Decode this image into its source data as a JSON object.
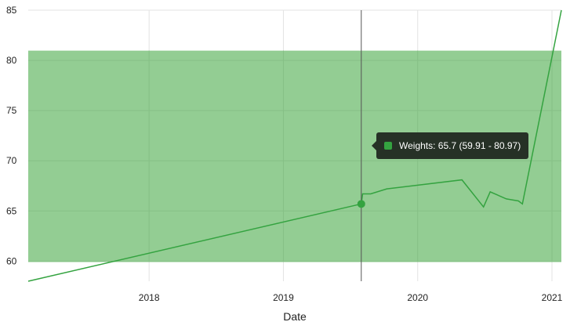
{
  "chart_data": {
    "type": "line",
    "xlabel": "Date",
    "ylabel": "",
    "xlim": [
      2017.1,
      2021.07
    ],
    "ylim": [
      58,
      85
    ],
    "x_ticks": [
      {
        "value": 2018,
        "label": "2018"
      },
      {
        "value": 2019,
        "label": "2019"
      },
      {
        "value": 2020,
        "label": "2020"
      },
      {
        "value": 2021,
        "label": "2021"
      }
    ],
    "y_ticks": [
      {
        "value": 60,
        "label": "60"
      },
      {
        "value": 65,
        "label": "65"
      },
      {
        "value": 70,
        "label": "70"
      },
      {
        "value": 75,
        "label": "75"
      },
      {
        "value": 80,
        "label": "80"
      },
      {
        "value": 85,
        "label": "85"
      }
    ],
    "grid": true,
    "band": {
      "low": 59.91,
      "high": 80.97,
      "color": "#93cd93"
    },
    "series": [
      {
        "name": "Weights",
        "color": "#34a340",
        "points": [
          [
            2017.1,
            58.0
          ],
          [
            2019.58,
            65.7
          ],
          [
            2019.59,
            66.7
          ],
          [
            2019.65,
            66.7
          ],
          [
            2019.77,
            67.2
          ],
          [
            2020.33,
            68.1
          ],
          [
            2020.49,
            65.4
          ],
          [
            2020.54,
            66.9
          ],
          [
            2020.66,
            66.2
          ],
          [
            2020.75,
            66.0
          ],
          [
            2020.78,
            65.7
          ],
          [
            2021.07,
            85.0
          ]
        ]
      }
    ],
    "hover": {
      "x": 2019.58,
      "y": 65.7
    }
  },
  "tooltip": {
    "text": "Weights: 65.7 (59.91 - 80.97)",
    "swatch_color": "#34a340"
  }
}
